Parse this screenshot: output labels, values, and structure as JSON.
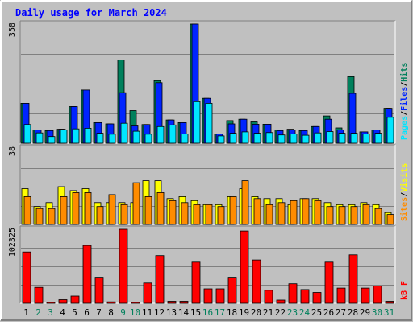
{
  "chart_data": {
    "type": "bar",
    "title": "Daily usage for March 2024",
    "categories": [
      "1",
      "2",
      "3",
      "4",
      "5",
      "6",
      "7",
      "8",
      "9",
      "10",
      "11",
      "12",
      "13",
      "14",
      "15",
      "16",
      "17",
      "18",
      "19",
      "20",
      "21",
      "22",
      "23",
      "24",
      "25",
      "26",
      "27",
      "28",
      "29",
      "30",
      "31"
    ],
    "weekend_days": [
      "2",
      "3",
      "9",
      "10",
      "16",
      "17",
      "23",
      "24",
      "30",
      "31"
    ],
    "panels": [
      {
        "id": "hits-files-pages",
        "max_label": "358",
        "ylim": [
          0,
          358
        ],
        "legend": [
          "Pages",
          "/",
          "Files",
          "/",
          "Hits"
        ],
        "series": [
          {
            "name": "Hits",
            "color": "#00805c",
            "values": [
              120,
              40,
              38,
              42,
              110,
              160,
              62,
              58,
              250,
              98,
              56,
              188,
              70,
              62,
              358,
              135,
              28,
              68,
              72,
              64,
              57,
              40,
              42,
              38,
              50,
              82,
              46,
              200,
              34,
              40,
              105
            ]
          },
          {
            "name": "Files",
            "color": "#0024ff",
            "values": [
              120,
              40,
              38,
              42,
              110,
              160,
              62,
              58,
              152,
              52,
              56,
              182,
              70,
              62,
              358,
              135,
              28,
              58,
              72,
              57,
              57,
              38,
              40,
              38,
              50,
              72,
              40,
              150,
              34,
              40,
              105
            ]
          },
          {
            "name": "Pages",
            "color": "#00e5ff",
            "values": [
              56,
              31,
              20,
              40,
              43,
              45,
              30,
              27,
              60,
              36,
              27,
              50,
              55,
              28,
              125,
              120,
              22,
              30,
              34,
              30,
              32,
              25,
              28,
              24,
              31,
              35,
              30,
              30,
              28,
              30,
              78
            ]
          }
        ]
      },
      {
        "id": "visits-sites",
        "max_label": "38",
        "ylim": [
          0,
          38
        ],
        "legend": [
          "Sites",
          "/",
          "Visits"
        ],
        "series": [
          {
            "name": "Visits",
            "color": "#ffff00",
            "values": [
              18,
              9,
              11,
              19,
              17,
              18,
              11,
              11,
              11,
              11,
              22,
              22,
              13,
              14,
              12,
              10,
              10,
              14,
              18,
              14,
              13,
              13,
              10,
              13,
              13,
              11,
              10,
              10,
              11,
              10,
              6
            ]
          },
          {
            "name": "Sites",
            "color": "#ff8c00",
            "values": [
              14,
              8,
              8,
              14,
              16,
              16,
              9,
              15,
              10,
              21,
              14,
              16,
              12,
              11,
              10,
              10,
              9,
              14,
              22,
              13,
              10,
              11,
              12,
              13,
              12,
              9,
              9,
              9,
              10,
              8,
              5
            ]
          }
        ]
      },
      {
        "id": "kbytes",
        "max_label": "102325",
        "ylim": [
          0,
          102325
        ],
        "legend": [
          "kB F"
        ],
        "series": [
          {
            "name": "kB F",
            "color": "#ff0000",
            "values": [
              71000,
              22000,
              1500,
              5000,
              10000,
              80000,
              36000,
              2000,
              102325,
              1500,
              28000,
              66000,
              2800,
              2800,
              57000,
              20000,
              20000,
              36000,
              100000,
              60000,
              18000,
              4500,
              27000,
              19000,
              15000,
              57000,
              21000,
              67000,
              21000,
              24000,
              2800
            ]
          }
        ]
      }
    ]
  }
}
